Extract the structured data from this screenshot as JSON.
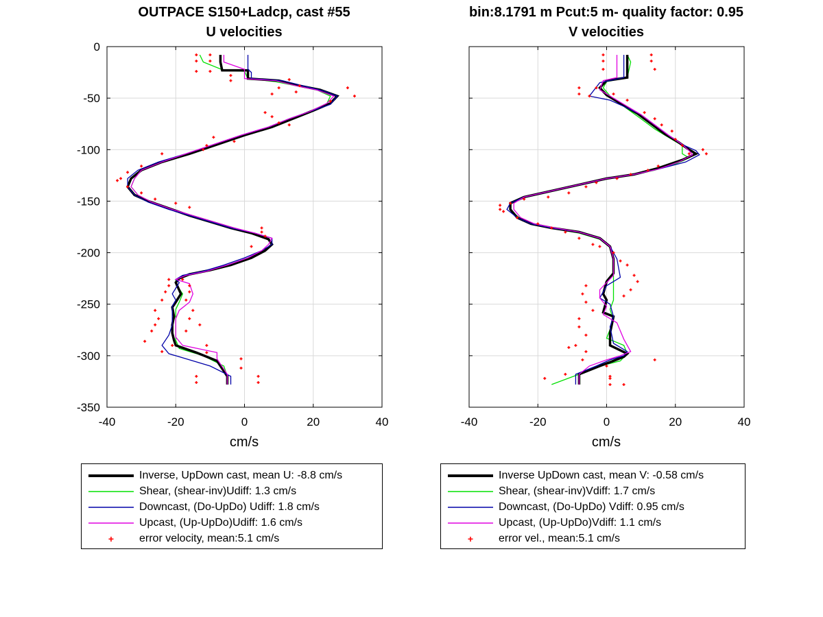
{
  "figure": {
    "title_left_1": "OUTPACE S150+Ladcp, cast #55",
    "title_left_2": "U velocities",
    "title_right_1": "bin:8.1791 m  Pcut:5 m- quality factor:  0.95",
    "title_right_2": "V velocities"
  },
  "colors": {
    "inverse": "#000000",
    "shear": "#00e000",
    "downcast": "#0000a8",
    "upcast": "#e000e0",
    "error": "#ff0000",
    "grid": "#d9d9d9"
  },
  "legend_left": [
    {
      "label": "Inverse, UpDown cast, mean U:  -8.8 cm/s",
      "style": "inverse"
    },
    {
      "label": "Shear, (shear-inv)Udiff:  1.3 cm/s",
      "style": "shear"
    },
    {
      "label": "Downcast, (Do-UpDo) Udiff:  1.8 cm/s",
      "style": "downcast"
    },
    {
      "label": "Upcast, (Up-UpDo)Udiff:  1.6 cm/s",
      "style": "upcast"
    },
    {
      "label": "error velocity, mean:5.1 cm/s",
      "style": "error"
    }
  ],
  "legend_right": [
    {
      "label": "Inverse UpDown cast, mean V:  -0.58 cm/s",
      "style": "inverse"
    },
    {
      "label": "Shear, (shear-inv)Vdiff:  1.7 cm/s",
      "style": "shear"
    },
    {
      "label": "Downcast, (Do-UpDo) Vdiff:  0.95 cm/s",
      "style": "downcast"
    },
    {
      "label": "Upcast, (Up-UpDo)Vdiff:  1.1 cm/s",
      "style": "upcast"
    },
    {
      "label": "error vel., mean:5.1 cm/s",
      "style": "error"
    }
  ],
  "chart_data": [
    {
      "type": "line",
      "title": "OUTPACE S150+Ladcp, cast #55",
      "subtitle": "U velocities",
      "xlabel": "cm/s",
      "ylabel": "",
      "xlim": [
        -40,
        40
      ],
      "ylim": [
        -350,
        0
      ],
      "xticks": [
        -40,
        -20,
        0,
        20,
        40
      ],
      "yticks": [
        0,
        -50,
        -100,
        -150,
        -200,
        -250,
        -300,
        -350
      ],
      "grid": true,
      "legend_position": "below",
      "series": [
        {
          "name": "Inverse, UpDown cast, mean U:  -8.8 cm/s",
          "style": "inverse",
          "x": [
            -7,
            -7,
            -6.5,
            1,
            1,
            10,
            16,
            22,
            27,
            25,
            20,
            14,
            8,
            0,
            -8,
            -16,
            -24,
            -30,
            -33,
            -34,
            -32,
            -28,
            -22,
            -16,
            -10,
            -4,
            2,
            7,
            8,
            6,
            2,
            -4,
            -10,
            -16,
            -19,
            -20,
            -18.5,
            -20,
            -21,
            -20.5,
            -21,
            -21,
            -20.5,
            -20,
            -14,
            -8,
            -5,
            -5
          ],
          "y": [
            -8,
            -15,
            -23,
            -23,
            -31,
            -33,
            -38,
            -42,
            -48,
            -55,
            -62,
            -70,
            -78,
            -86,
            -95,
            -104,
            -112,
            -120,
            -128,
            -136,
            -144,
            -150,
            -157,
            -164,
            -170,
            -176,
            -181,
            -187,
            -192,
            -198,
            -205,
            -212,
            -217,
            -221,
            -225,
            -229,
            -240,
            -248,
            -253,
            -262,
            -270,
            -278,
            -285,
            -290,
            -297,
            -305,
            -320,
            -328
          ]
        },
        {
          "name": "Shear, (shear-inv)Udiff:  1.3 cm/s",
          "style": "shear",
          "x": [
            -13,
            -12,
            -6,
            0,
            1,
            9,
            15,
            21,
            25,
            24,
            19,
            13,
            7,
            0,
            -8,
            -16,
            -24,
            -30,
            -32,
            -33,
            -31,
            -27,
            -21,
            -15,
            -9,
            -3,
            2,
            7,
            8,
            6,
            1,
            -5,
            -11,
            -17,
            -20,
            -20,
            -18,
            -19,
            -20,
            -20,
            -20,
            -20,
            -19,
            -12,
            -6,
            -5,
            -5
          ],
          "y": [
            -8,
            -15,
            -23,
            -24,
            -31,
            -34,
            -38,
            -42,
            -48,
            -55,
            -63,
            -70,
            -78,
            -86,
            -95,
            -104,
            -112,
            -120,
            -128,
            -136,
            -144,
            -151,
            -158,
            -164,
            -170,
            -176,
            -181,
            -187,
            -192,
            -198,
            -205,
            -212,
            -218,
            -222,
            -226,
            -230,
            -240,
            -248,
            -255,
            -265,
            -275,
            -285,
            -293,
            -300,
            -310,
            -320,
            -328
          ]
        },
        {
          "name": "Downcast, (Do-UpDo) Udiff:  1.8 cm/s",
          "style": "downcast",
          "x": [
            1,
            1,
            1,
            2,
            2,
            11,
            17,
            23,
            27,
            25,
            19,
            13,
            7,
            -1,
            -9,
            -17,
            -25,
            -31,
            -34,
            -34,
            -32,
            -28,
            -22,
            -16,
            -10,
            -4,
            3,
            8,
            8,
            5,
            0,
            -6,
            -12,
            -18,
            -20,
            -19,
            -21,
            -20,
            -21,
            -21,
            -21,
            -22,
            -24,
            -22,
            -10,
            -4,
            -4
          ],
          "y": [
            -8,
            -15,
            -22,
            -25,
            -31,
            -33,
            -38,
            -43,
            -48,
            -56,
            -63,
            -70,
            -78,
            -86,
            -95,
            -104,
            -112,
            -120,
            -128,
            -136,
            -144,
            -151,
            -158,
            -164,
            -170,
            -176,
            -181,
            -186,
            -192,
            -198,
            -205,
            -212,
            -218,
            -222,
            -226,
            -229,
            -240,
            -246,
            -252,
            -262,
            -270,
            -280,
            -290,
            -298,
            -310,
            -320,
            -328
          ]
        },
        {
          "name": "Upcast, (Up-UpDo)Udiff:  1.6 cm/s",
          "style": "upcast",
          "x": [
            -6,
            -6,
            0,
            0,
            0,
            9,
            15,
            21,
            26,
            24,
            19,
            13,
            7,
            -1,
            -9,
            -17,
            -24,
            -30,
            -32,
            -33,
            -31,
            -27,
            -21,
            -15,
            -9,
            -3,
            3,
            8,
            7,
            5,
            1,
            -5,
            -11,
            -17,
            -20,
            -16,
            -15,
            -16,
            -19,
            -20,
            -20,
            -20,
            -18,
            -8,
            -8,
            -5,
            -5
          ],
          "y": [
            -8,
            -15,
            -22,
            -25,
            -31,
            -33,
            -38,
            -42,
            -48,
            -55,
            -63,
            -70,
            -78,
            -86,
            -95,
            -104,
            -112,
            -120,
            -128,
            -136,
            -144,
            -151,
            -158,
            -164,
            -170,
            -176,
            -181,
            -186,
            -192,
            -198,
            -205,
            -212,
            -218,
            -222,
            -226,
            -230,
            -240,
            -248,
            -256,
            -264,
            -272,
            -282,
            -290,
            -297,
            -303,
            -318,
            -328
          ]
        }
      ],
      "error_points": {
        "name": "error velocity, mean:5.1 cm/s",
        "x": [
          -14,
          -14,
          -14,
          -10,
          -10,
          -10,
          -4,
          -4,
          8,
          10,
          13,
          15,
          16,
          30,
          32,
          25,
          6,
          8,
          10,
          13,
          -9,
          -11,
          -12,
          -3,
          -24,
          -30,
          -34,
          -36,
          -37,
          -34,
          -30,
          -26,
          -20,
          -16,
          5,
          5,
          6,
          2,
          -22,
          -22,
          -23,
          -24,
          -26,
          -18,
          -16,
          -16,
          -17,
          -25,
          -26,
          -27,
          -29,
          -15,
          -16,
          -13,
          -17,
          -21,
          -24,
          -11,
          -11,
          -1,
          -1,
          -14,
          4,
          -14,
          4
        ],
        "y": [
          -8,
          -14,
          -24,
          -8,
          -14,
          -24,
          -28,
          -33,
          -46,
          -40,
          -32,
          -44,
          -38,
          -40,
          -48,
          -53,
          -64,
          -68,
          -74,
          -76,
          -88,
          -96,
          -100,
          -92,
          -104,
          -116,
          -122,
          -128,
          -130,
          -136,
          -142,
          -148,
          -152,
          -156,
          -176,
          -180,
          -184,
          -194,
          -226,
          -232,
          -238,
          -246,
          -256,
          -226,
          -232,
          -238,
          -246,
          -264,
          -270,
          -276,
          -286,
          -256,
          -264,
          -270,
          -276,
          -290,
          -296,
          -290,
          -297,
          -303,
          -312,
          -320,
          -320,
          -326,
          -326
        ]
      }
    },
    {
      "type": "line",
      "title": "bin:8.1791 m  Pcut:5 m- quality factor:  0.95",
      "subtitle": "V velocities",
      "xlabel": "cm/s",
      "ylabel": "",
      "xlim": [
        -40,
        40
      ],
      "ylim": [
        -350,
        0
      ],
      "xticks": [
        -40,
        -20,
        0,
        20,
        40
      ],
      "grid": true,
      "legend_position": "below",
      "series": [
        {
          "name": "Inverse UpDown cast, mean V:  -0.58 cm/s",
          "style": "inverse",
          "x": [
            6,
            6,
            6,
            0,
            -2,
            0,
            4,
            9,
            13,
            17,
            21,
            24,
            26,
            22,
            15,
            8,
            0,
            -8,
            -16,
            -24,
            -28,
            -28,
            -26,
            -22,
            -16,
            -8,
            -2,
            1,
            2,
            2,
            0,
            -1,
            0,
            -1,
            2,
            1,
            1,
            6,
            5,
            2,
            -2,
            -8,
            -8
          ],
          "y": [
            -8,
            -15,
            -30,
            -33,
            -40,
            -47,
            -55,
            -65,
            -75,
            -85,
            -93,
            -100,
            -104,
            -110,
            -118,
            -124,
            -128,
            -134,
            -140,
            -146,
            -152,
            -158,
            -166,
            -172,
            -176,
            -180,
            -186,
            -194,
            -206,
            -220,
            -228,
            -240,
            -246,
            -258,
            -262,
            -278,
            -290,
            -298,
            -301,
            -305,
            -310,
            -318,
            -328
          ]
        },
        {
          "name": "Shear, (shear-inv)Vdiff:  1.7 cm/s",
          "style": "shear",
          "x": [
            6,
            7,
            6,
            0,
            -1,
            1,
            5,
            10,
            14,
            18,
            22,
            22,
            24,
            20,
            14,
            7,
            -1,
            -9,
            -17,
            -25,
            -28,
            -28,
            -25,
            -21,
            -15,
            -8,
            -2,
            1,
            2,
            2,
            2,
            2,
            1,
            2,
            0,
            5,
            6,
            4,
            -2,
            -8,
            -16
          ],
          "y": [
            -8,
            -15,
            -30,
            -34,
            -40,
            -48,
            -58,
            -70,
            -80,
            -88,
            -96,
            -104,
            -108,
            -114,
            -120,
            -125,
            -129,
            -135,
            -141,
            -147,
            -153,
            -159,
            -167,
            -172,
            -177,
            -181,
            -187,
            -195,
            -205,
            -222,
            -232,
            -246,
            -255,
            -266,
            -283,
            -290,
            -298,
            -305,
            -310,
            -318,
            -328
          ]
        },
        {
          "name": "Downcast, (Do-UpDo) Vdiff:  0.95 cm/s",
          "style": "downcast",
          "x": [
            5,
            5,
            5,
            -2,
            -5,
            1,
            5,
            10,
            14,
            18,
            22,
            26,
            27,
            23,
            15,
            8,
            0,
            -8,
            -16,
            -24,
            -28,
            -29,
            -26,
            -22,
            -16,
            -8,
            -2,
            1,
            3,
            4,
            0,
            -2,
            1,
            2,
            1,
            2,
            6,
            5,
            1,
            -3,
            -9,
            -9
          ],
          "y": [
            -8,
            -15,
            -30,
            -35,
            -48,
            -52,
            -58,
            -66,
            -76,
            -86,
            -95,
            -101,
            -105,
            -112,
            -119,
            -124,
            -128,
            -134,
            -140,
            -146,
            -152,
            -158,
            -166,
            -172,
            -176,
            -180,
            -186,
            -194,
            -206,
            -224,
            -232,
            -244,
            -250,
            -262,
            -272,
            -288,
            -296,
            -300,
            -304,
            -310,
            -318,
            -328
          ]
        },
        {
          "name": "Upcast, (Up-UpDo)Vdiff:  1.1 cm/s",
          "style": "upcast",
          "x": [
            3,
            3,
            3,
            -1,
            -2,
            1,
            5,
            10,
            14,
            18,
            22,
            24,
            25,
            21,
            15,
            8,
            0,
            -8,
            -16,
            -24,
            -27,
            -27,
            -25,
            -21,
            -15,
            -8,
            -2,
            1,
            2,
            2,
            -2,
            -2,
            0,
            -1,
            3,
            5,
            7,
            4,
            0,
            -5,
            -8,
            -8
          ],
          "y": [
            -8,
            -15,
            -30,
            -33,
            -42,
            -48,
            -56,
            -66,
            -76,
            -86,
            -95,
            -101,
            -105,
            -112,
            -119,
            -124,
            -128,
            -134,
            -140,
            -146,
            -152,
            -158,
            -166,
            -172,
            -176,
            -180,
            -186,
            -194,
            -206,
            -222,
            -236,
            -244,
            -252,
            -260,
            -268,
            -284,
            -296,
            -300,
            -304,
            -310,
            -318,
            -328
          ]
        }
      ],
      "error_points": {
        "name": "error vel., mean:5.1 cm/s",
        "x": [
          -1,
          -1,
          -1,
          13,
          13,
          14,
          -8,
          -8,
          -5,
          -3,
          2,
          6,
          11,
          14,
          16,
          19,
          20,
          22,
          24,
          28,
          29,
          15,
          12,
          7,
          3,
          -3,
          -6,
          -11,
          -17,
          -24,
          -28,
          -31,
          -31,
          -30,
          -26,
          -20,
          -16,
          -12,
          -8,
          -4,
          -2,
          2,
          4,
          6,
          8,
          9,
          7,
          5,
          -6,
          -7,
          -6,
          -4,
          -8,
          -8,
          -6,
          -9,
          -6,
          -7,
          -11,
          0,
          1,
          14,
          -12,
          -18,
          5,
          1,
          1
        ],
        "y": [
          -8,
          -14,
          -22,
          -8,
          -14,
          -22,
          -40,
          -46,
          -48,
          -40,
          -46,
          -52,
          -64,
          -70,
          -76,
          -82,
          -90,
          -96,
          -104,
          -100,
          -104,
          -116,
          -120,
          -124,
          -128,
          -132,
          -136,
          -142,
          -146,
          -148,
          -152,
          -154,
          -158,
          -160,
          -166,
          -172,
          -176,
          -180,
          -186,
          -192,
          -194,
          -200,
          -208,
          -212,
          -222,
          -228,
          -236,
          -242,
          -232,
          -240,
          -248,
          -256,
          -264,
          -272,
          -280,
          -290,
          -296,
          -304,
          -292,
          -310,
          -320,
          -304,
          -318,
          -322,
          -328,
          -322,
          -328
        ]
      }
    }
  ]
}
